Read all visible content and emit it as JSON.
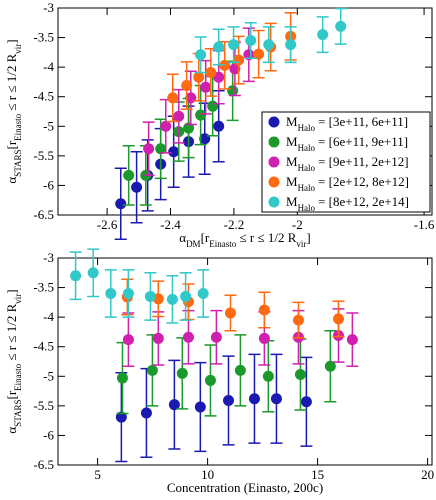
{
  "chart_data": [
    {
      "type": "scatter",
      "xlabel_parts": [
        {
          "text": "α"
        },
        {
          "text": "DM",
          "sub": true
        },
        {
          "text": "[r"
        },
        {
          "text": "Einasto",
          "sub": true
        },
        {
          "text": " ≤ r ≤ 1/2 R"
        },
        {
          "text": "vir",
          "sub": true
        },
        {
          "text": "]"
        }
      ],
      "ylabel_parts": [
        {
          "text": "α"
        },
        {
          "text": "STARS",
          "sub": true
        },
        {
          "text": "[r"
        },
        {
          "text": "Einasto",
          "sub": true
        },
        {
          "text": " ≤ r ≤ 1/2 R"
        },
        {
          "text": "vir",
          "sub": true
        },
        {
          "text": "]"
        }
      ],
      "xlim": [
        -2.755,
        -1.575
      ],
      "xticks": [
        -2.6,
        -2.4,
        -2.2,
        -2,
        -1.6
      ],
      "ylim": [
        -6.5,
        -3
      ],
      "yticks": [
        -3,
        -3.5,
        -4,
        -4.5,
        -5,
        -5.5,
        -6,
        -6.5
      ],
      "legend_symbol": "M",
      "legend_symbol_sub": "Halo",
      "legend": "lower right",
      "series": [
        {
          "name": "= [3e+11, 6e+11]",
          "color": "#1a1ab0",
          "x": [
            -2.557,
            -2.507,
            -2.472,
            -2.431,
            -2.39,
            -2.343,
            -2.292,
            -2.248
          ],
          "values": [
            -6.31,
            -6.03,
            -5.83,
            -5.64,
            -5.43,
            -5.26,
            -5.21,
            -5.0
          ],
          "errors": [
            0.6,
            0.6,
            0.6,
            0.6,
            0.6,
            0.6,
            0.6,
            0.6
          ]
        },
        {
          "name": "= [6e+11, 9e+11]",
          "color": "#1a9a2a",
          "x": [
            -2.532,
            -2.478,
            -2.431,
            -2.374,
            -2.343,
            -2.305,
            -2.267,
            -2.204
          ],
          "values": [
            -5.83,
            -5.83,
            -5.38,
            -5.09,
            -5.03,
            -4.81,
            -4.66,
            -4.4
          ],
          "errors": [
            0.5,
            0.5,
            0.5,
            0.5,
            0.5,
            0.5,
            0.5,
            0.5
          ]
        },
        {
          "name": "= [9e+11, 2e+12]",
          "color": "#d020b0",
          "x": [
            -2.469,
            -2.415,
            -2.374,
            -2.336,
            -2.289,
            -2.248,
            -2.197,
            -2.153
          ],
          "values": [
            -5.38,
            -5.0,
            -4.83,
            -4.52,
            -4.34,
            -4.17,
            -4.03,
            -3.79
          ],
          "errors": [
            0.45,
            0.45,
            0.45,
            0.45,
            0.45,
            0.45,
            0.45,
            0.45
          ]
        },
        {
          "name": "= [2e+12, 8e+12]",
          "color": "#ff6a10",
          "x": [
            -2.393,
            -2.349,
            -2.311,
            -2.273,
            -2.229,
            -2.185,
            -2.122,
            -2.084,
            -2.021
          ],
          "values": [
            -4.52,
            -4.31,
            -4.17,
            -4.09,
            -3.97,
            -3.88,
            -3.78,
            -3.66,
            -3.48
          ],
          "errors": [
            0.4,
            0.4,
            0.4,
            0.4,
            0.4,
            0.4,
            0.4,
            0.4,
            0.4
          ]
        },
        {
          "name": "= [8e+12, 2e+14]",
          "color": "#30c8c8",
          "x": [
            -2.305,
            -2.248,
            -2.201,
            -2.147,
            -2.09,
            -2.021,
            -1.92,
            -1.863
          ],
          "values": [
            -3.79,
            -3.66,
            -3.62,
            -3.55,
            -3.62,
            -3.62,
            -3.45,
            -3.31
          ],
          "errors": [
            0.3,
            0.3,
            0.3,
            0.3,
            0.3,
            0.3,
            0.3,
            0.3
          ]
        }
      ]
    },
    {
      "type": "scatter",
      "xlabel_parts": [
        {
          "text": "Concentration (Einasto, 200c)"
        }
      ],
      "ylabel_parts": [
        {
          "text": "α"
        },
        {
          "text": "STARS",
          "sub": true
        },
        {
          "text": "[r"
        },
        {
          "text": "Einasto",
          "sub": true
        },
        {
          "text": " ≤ r ≤ 1/2 R"
        },
        {
          "text": "vir",
          "sub": true
        },
        {
          "text": "]"
        }
      ],
      "xlim": [
        3.2,
        20.2
      ],
      "xticks": [
        5,
        10,
        15,
        20
      ],
      "ylim": [
        -6.5,
        -3
      ],
      "yticks": [
        -3,
        -3.5,
        -4,
        -4.5,
        -5,
        -5.5,
        -6,
        -6.5
      ],
      "series": [
        {
          "color": "#1a1ab0",
          "x": [
            6.08,
            7.22,
            8.49,
            9.67,
            10.95,
            12.13,
            13.13,
            14.49
          ],
          "values": [
            -5.69,
            -5.62,
            -5.48,
            -5.52,
            -5.41,
            -5.38,
            -5.38,
            -5.43
          ],
          "errors": [
            0.75,
            0.75,
            0.75,
            0.75,
            0.75,
            0.75,
            0.75,
            0.75
          ]
        },
        {
          "color": "#1a9a2a",
          "x": [
            6.13,
            7.49,
            8.85,
            10.13,
            11.49,
            12.76,
            14.22,
            15.58
          ],
          "values": [
            -5.03,
            -4.9,
            -4.95,
            -5.07,
            -4.9,
            -5.0,
            -4.97,
            -4.83
          ],
          "errors": [
            0.6,
            0.6,
            0.6,
            0.6,
            0.6,
            0.6,
            0.6,
            0.6
          ]
        },
        {
          "color": "#d020b0",
          "x": [
            6.4,
            7.76,
            9.13,
            10.4,
            12.58,
            14.13,
            15.95,
            16.58
          ],
          "values": [
            -4.38,
            -4.36,
            -4.34,
            -4.34,
            -4.36,
            -4.34,
            -4.31,
            -4.38
          ],
          "errors": [
            0.45,
            0.45,
            0.45,
            0.45,
            0.45,
            0.45,
            0.45,
            0.45
          ]
        },
        {
          "color": "#ff6a10",
          "x": [
            6.35,
            7.76,
            9.13,
            11.04,
            12.58,
            14.13,
            15.95
          ],
          "values": [
            -3.66,
            -3.69,
            -3.74,
            -3.93,
            -3.88,
            -4.05,
            -4.03
          ],
          "errors": [
            0.3,
            0.3,
            0.3,
            0.3,
            0.3,
            0.3,
            0.3
          ]
        },
        {
          "color": "#30c8c8",
          "x": [
            4.0,
            4.8,
            5.6,
            6.4,
            7.4,
            8.4,
            9.0,
            9.8
          ],
          "values": [
            -3.3,
            -3.25,
            -3.6,
            -3.6,
            -3.65,
            -3.7,
            -3.65,
            -3.6
          ],
          "errors": [
            0.4,
            0.4,
            0.4,
            0.4,
            0.4,
            0.4,
            0.4,
            0.4
          ]
        }
      ]
    }
  ]
}
